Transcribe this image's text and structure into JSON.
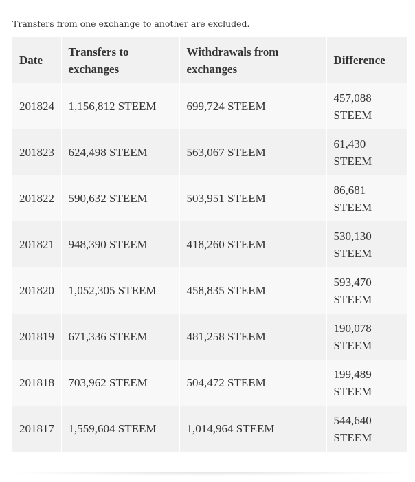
{
  "note": "Transfers from one exchange to another are excluded.",
  "table": {
    "headers": {
      "date": "Date",
      "to": "Transfers to exchanges",
      "from": "Withdrawals from exchanges",
      "diff": "Difference"
    },
    "rows": [
      {
        "date": "201824",
        "to": "1,156,812 STEEM",
        "from": "699,724 STEEM",
        "diff": "457,088 STEEM"
      },
      {
        "date": "201823",
        "to": "624,498 STEEM",
        "from": "563,067 STEEM",
        "diff": "61,430 STEEM"
      },
      {
        "date": "201822",
        "to": "590,632 STEEM",
        "from": "503,951 STEEM",
        "diff": "86,681 STEEM"
      },
      {
        "date": "201821",
        "to": "948,390 STEEM",
        "from": "418,260 STEEM",
        "diff": "530,130 STEEM"
      },
      {
        "date": "201820",
        "to": "1,052,305 STEEM",
        "from": "458,835 STEEM",
        "diff": "593,470 STEEM"
      },
      {
        "date": "201819",
        "to": "671,336 STEEM",
        "from": "481,258 STEEM",
        "diff": "190,078 STEEM"
      },
      {
        "date": "201818",
        "to": "703,962 STEEM",
        "from": "504,472 STEEM",
        "diff": "199,489 STEEM"
      },
      {
        "date": "201817",
        "to": "1,559,604 STEEM",
        "from": "1,014,964 STEEM",
        "diff": "544,640 STEEM"
      }
    ]
  },
  "colors": {
    "text": "#333333",
    "header_bg": "#f1f1f1",
    "row_odd_bg": "#f8f8f8",
    "row_even_bg": "#f1f1f1"
  }
}
